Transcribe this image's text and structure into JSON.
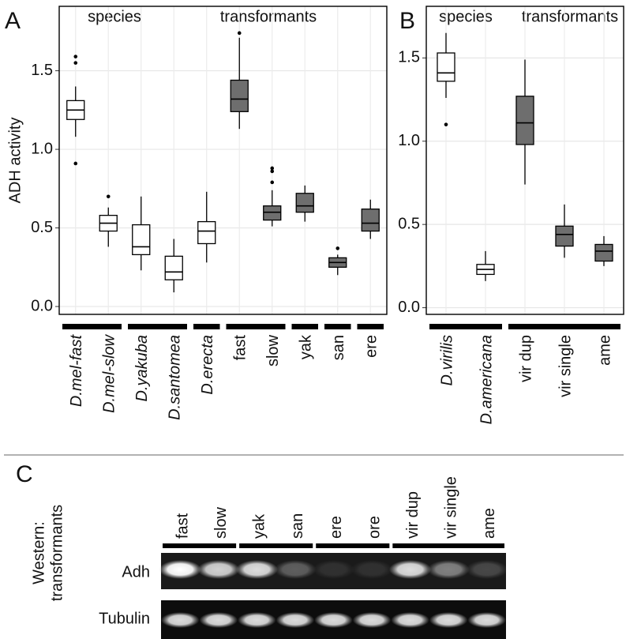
{
  "chart_data": [
    {
      "type": "box",
      "title": "A",
      "y_label": "ADH activity",
      "ylim": [
        -0.05,
        1.91
      ],
      "yticks": [
        {
          "value": 0,
          "label": "0.0"
        },
        {
          "value": 0.5,
          "label": "0.5"
        },
        {
          "value": 1,
          "label": "1.0"
        },
        {
          "value": 1.5,
          "label": "1.5"
        }
      ],
      "grid": true,
      "series": [
        {
          "name": "species",
          "color": "#ffffff",
          "categories": [
            "D.mel-fast",
            "D.mel-slow",
            "D.yakuba",
            "D.santomea",
            "D.erecta"
          ],
          "boxes": [
            {
              "low": 1.08,
              "q1": 1.19,
              "median": 1.25,
              "q3": 1.31,
              "high": 1.4,
              "outliers": [
                0.91,
                1.55,
                1.59
              ]
            },
            {
              "low": 0.38,
              "q1": 0.48,
              "median": 0.53,
              "q3": 0.58,
              "high": 0.63,
              "outliers": [
                0.7
              ]
            },
            {
              "low": 0.23,
              "q1": 0.33,
              "median": 0.38,
              "q3": 0.52,
              "high": 0.7,
              "outliers": []
            },
            {
              "low": 0.09,
              "q1": 0.17,
              "median": 0.22,
              "q3": 0.32,
              "high": 0.43,
              "outliers": []
            },
            {
              "low": 0.28,
              "q1": 0.4,
              "median": 0.48,
              "q3": 0.54,
              "high": 0.73,
              "outliers": []
            }
          ]
        },
        {
          "name": "transformants",
          "color": "#6e6e6e",
          "categories": [
            "fast",
            "slow",
            "yak",
            "san",
            "ere"
          ],
          "boxes": [
            {
              "low": 1.13,
              "q1": 1.24,
              "median": 1.32,
              "q3": 1.44,
              "high": 1.71,
              "outliers": [
                1.74
              ]
            },
            {
              "low": 0.51,
              "q1": 0.55,
              "median": 0.6,
              "q3": 0.64,
              "high": 0.74,
              "outliers": [
                0.79,
                0.86,
                0.88
              ]
            },
            {
              "low": 0.54,
              "q1": 0.6,
              "median": 0.64,
              "q3": 0.72,
              "high": 0.77,
              "outliers": []
            },
            {
              "low": 0.2,
              "q1": 0.25,
              "median": 0.28,
              "q3": 0.31,
              "high": 0.33,
              "outliers": [
                0.37
              ]
            },
            {
              "low": 0.43,
              "q1": 0.48,
              "median": 0.53,
              "q3": 0.62,
              "high": 0.68,
              "outliers": []
            }
          ]
        }
      ]
    },
    {
      "type": "box",
      "title": "B",
      "ylim": [
        -0.04,
        1.81
      ],
      "yticks": [
        {
          "value": 0,
          "label": "0.0"
        },
        {
          "value": 0.5,
          "label": "0.5"
        },
        {
          "value": 1,
          "label": "1.0"
        },
        {
          "value": 1.5,
          "label": "1.5"
        }
      ],
      "grid": true,
      "series": [
        {
          "name": "species",
          "color": "#ffffff",
          "categories": [
            "D.virilis",
            "D.americana"
          ],
          "boxes": [
            {
              "low": 1.26,
              "q1": 1.36,
              "median": 1.41,
              "q3": 1.53,
              "high": 1.65,
              "outliers": [
                1.1
              ]
            },
            {
              "low": 0.16,
              "q1": 0.2,
              "median": 0.23,
              "q3": 0.26,
              "high": 0.34,
              "outliers": []
            }
          ]
        },
        {
          "name": "transformants",
          "color": "#6e6e6e",
          "categories": [
            "vir dup",
            "vir single",
            "ame"
          ],
          "boxes": [
            {
              "low": 0.74,
              "q1": 0.98,
              "median": 1.11,
              "q3": 1.27,
              "high": 1.49,
              "outliers": []
            },
            {
              "low": 0.3,
              "q1": 0.37,
              "median": 0.44,
              "q3": 0.49,
              "high": 0.62,
              "outliers": []
            },
            {
              "low": 0.25,
              "q1": 0.28,
              "median": 0.34,
              "q3": 0.38,
              "high": 0.43,
              "outliers": []
            }
          ]
        }
      ]
    }
  ],
  "western": {
    "title": "C",
    "label_lines": [
      "Western:",
      "transformants"
    ],
    "lanes": [
      "fast",
      "slow",
      "yak",
      "san",
      "ere",
      "ore",
      "vir dup",
      "vir single",
      "ame"
    ],
    "rows": [
      "Adh",
      "Tubulin"
    ]
  }
}
